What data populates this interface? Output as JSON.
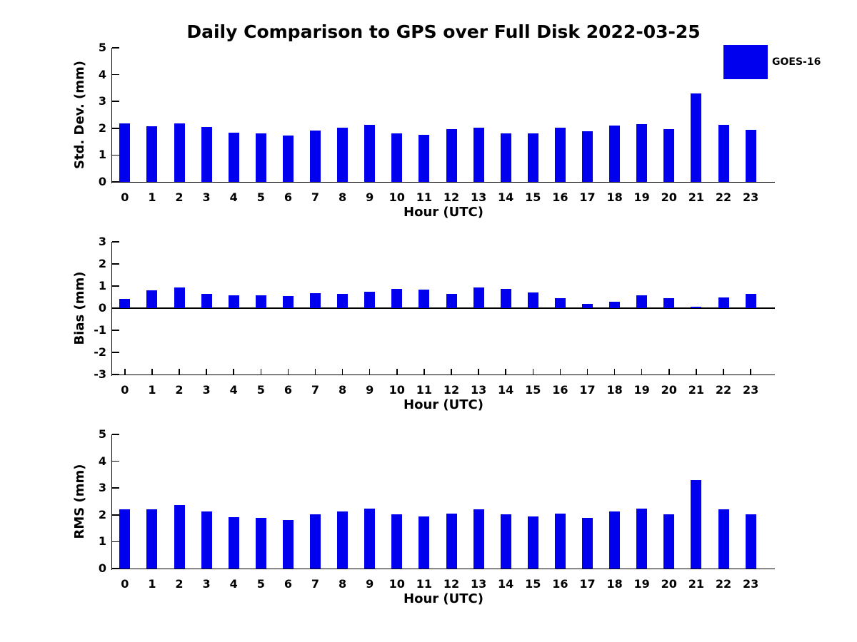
{
  "title": "Daily Comparison to GPS over Full Disk 2022-03-25",
  "legend": {
    "label": "GOES-16",
    "swatch_color": "#0000ee",
    "position": "upper right"
  },
  "colors": {
    "bar": "#0000ee",
    "axis": "#000000",
    "text": "#000000",
    "background": "#ffffff"
  },
  "chart_data": [
    {
      "type": "bar",
      "panel": "std-dev",
      "ylabel": "Std. Dev. (mm)",
      "xlabel": "Hour (UTC)",
      "series_name": "GOES-16",
      "categories": [
        0,
        1,
        2,
        3,
        4,
        5,
        6,
        7,
        8,
        9,
        10,
        11,
        12,
        13,
        14,
        15,
        16,
        17,
        18,
        19,
        20,
        21,
        22,
        23
      ],
      "values": [
        2.18,
        2.07,
        2.18,
        2.04,
        1.83,
        1.8,
        1.73,
        1.91,
        2.02,
        2.12,
        1.81,
        1.76,
        1.96,
        2.01,
        1.81,
        1.8,
        2.01,
        1.88,
        2.11,
        2.15,
        1.98,
        3.3,
        2.13,
        1.93
      ],
      "ylim": [
        0,
        5
      ],
      "yticks": [
        0,
        1,
        2,
        3,
        4,
        5
      ],
      "grid": false,
      "legend_position": "upper right"
    },
    {
      "type": "bar",
      "panel": "bias",
      "ylabel": "Bias (mm)",
      "xlabel": "Hour (UTC)",
      "series_name": "GOES-16",
      "categories": [
        0,
        1,
        2,
        3,
        4,
        5,
        6,
        7,
        8,
        9,
        10,
        11,
        12,
        13,
        14,
        15,
        16,
        17,
        18,
        19,
        20,
        21,
        22,
        23
      ],
      "values": [
        0.42,
        0.8,
        0.94,
        0.65,
        0.58,
        0.58,
        0.55,
        0.67,
        0.64,
        0.73,
        0.88,
        0.85,
        0.63,
        0.94,
        0.87,
        0.7,
        0.46,
        0.18,
        0.3,
        0.58,
        0.46,
        0.08,
        0.49,
        0.64
      ],
      "ylim": [
        -3,
        3
      ],
      "yticks": [
        -3,
        -2,
        -1,
        0,
        1,
        2,
        3
      ],
      "grid": false,
      "legend_position": "none"
    },
    {
      "type": "bar",
      "panel": "rms",
      "ylabel": "RMS (mm)",
      "xlabel": "Hour (UTC)",
      "series_name": "GOES-16",
      "categories": [
        0,
        1,
        2,
        3,
        4,
        5,
        6,
        7,
        8,
        9,
        10,
        11,
        12,
        13,
        14,
        15,
        16,
        17,
        18,
        19,
        20,
        21,
        22,
        23
      ],
      "values": [
        2.22,
        2.22,
        2.37,
        2.14,
        1.92,
        1.9,
        1.81,
        2.03,
        2.12,
        2.24,
        2.01,
        1.95,
        2.06,
        2.22,
        2.01,
        1.93,
        2.06,
        1.89,
        2.13,
        2.23,
        2.03,
        3.3,
        2.2,
        2.03
      ],
      "ylim": [
        0,
        5
      ],
      "yticks": [
        0,
        1,
        2,
        3,
        4,
        5
      ],
      "grid": false,
      "legend_position": "none"
    }
  ]
}
